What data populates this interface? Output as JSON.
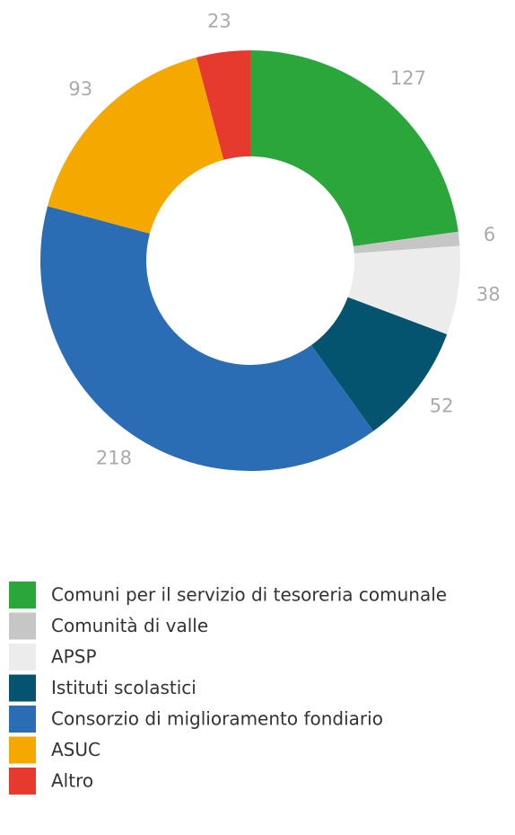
{
  "chart_data": {
    "type": "donut",
    "categories": [
      "Comuni per il servizio di tesoreria comunale",
      "Comunità di valle",
      "APSP",
      "Istituti scolastici",
      "Consorzio di miglioramento fondiario",
      "ASUC",
      "Altro"
    ],
    "values": [
      127,
      6,
      38,
      52,
      218,
      93,
      23
    ],
    "colors": [
      "#2ba63a",
      "#c6c6c6",
      "#ececec",
      "#045470",
      "#2a6db5",
      "#f5a800",
      "#e63a2e"
    ]
  }
}
